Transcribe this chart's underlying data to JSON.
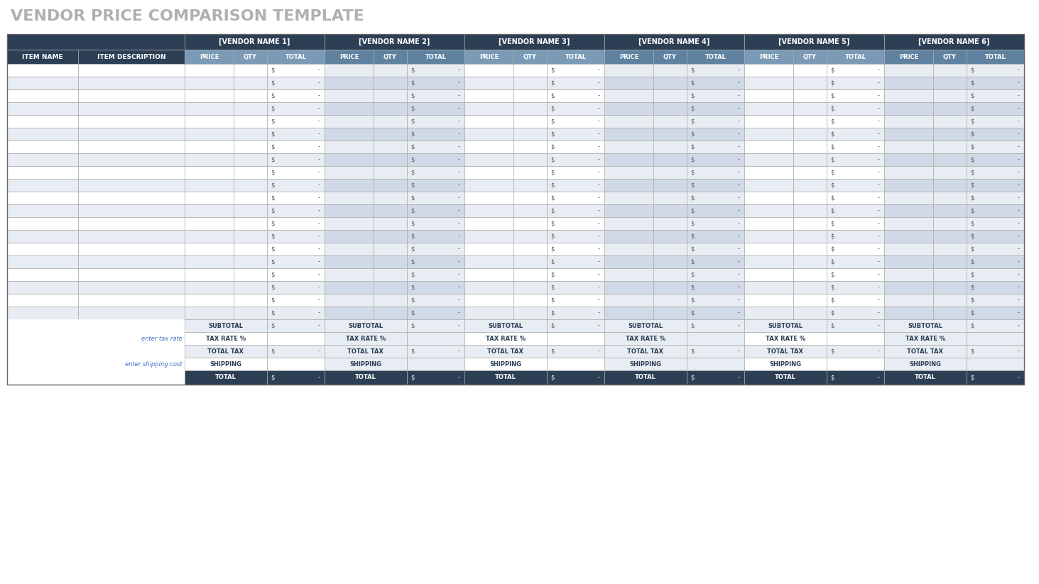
{
  "title": "VENDOR PRICE COMPARISON TEMPLATE",
  "title_color": "#b0b0b0",
  "title_fontsize": 16,
  "vendors": [
    "[VENDOR NAME 1]",
    "[VENDOR NAME 2]",
    "[VENDOR NAME 3]",
    "[VENDOR NAME 4]",
    "[VENDOR NAME 5]",
    "[VENDOR NAME 6]"
  ],
  "col_headers": [
    "PRICE",
    "QTY",
    "TOTAL"
  ],
  "row_headers": [
    "ITEM NAME",
    "ITEM DESCRIPTION"
  ],
  "num_data_rows": 20,
  "footer_rows": [
    "SUBTOTAL",
    "TAX RATE %",
    "TOTAL TAX",
    "SHIPPING",
    "TOTAL"
  ],
  "left_annotations": [
    "enter tax rate",
    "enter shipping cost"
  ],
  "dollar_sign": "$",
  "dash_val": "-",
  "header_dark_bg": "#2d3f54",
  "header_dark_text": "#ffffff",
  "header_mid_bg": "#7a9ab5",
  "header_mid_text": "#ffffff",
  "row_alt1_bg": "#ffffff",
  "row_alt2_bg": "#e8edf3",
  "vendor_block_alt1": "#e8edf3",
  "vendor_block_alt2": "#d0dae6",
  "footer_subtotal_bg": "#e8edf3",
  "footer_tax_rate_bg": "#ffffff",
  "footer_total_tax_bg": "#e8edf3",
  "footer_shipping_bg": "#ffffff",
  "footer_total_bg": "#2d3f54",
  "footer_total_text": "#ffffff",
  "left_col_bg": "#ffffff",
  "grid_color": "#aaaaaa",
  "cell_text_color": "#555555",
  "footer_label_color": "#2d3f54",
  "annotation_color": "#4472c4"
}
